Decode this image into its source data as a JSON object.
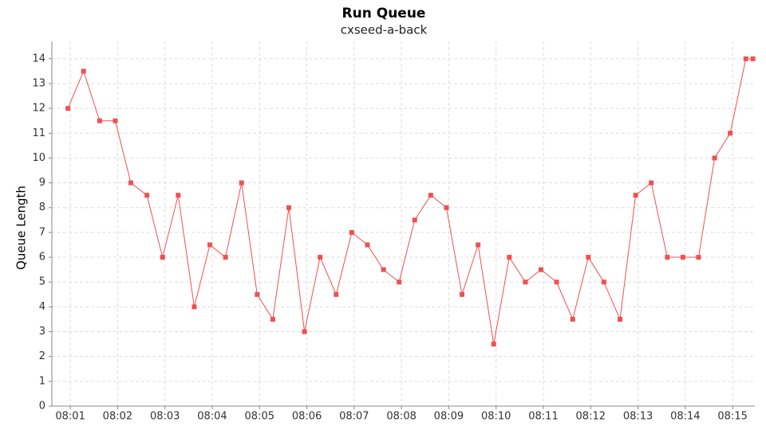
{
  "chart_data": {
    "type": "line",
    "title": "Run Queue",
    "subtitle": "cxseed-a-back",
    "y_label": "Queue Length",
    "x": [
      0.95,
      1.28,
      1.62,
      1.95,
      2.28,
      2.62,
      2.95,
      3.28,
      3.62,
      3.95,
      4.28,
      4.62,
      4.95,
      5.28,
      5.62,
      5.95,
      6.28,
      6.62,
      6.95,
      7.28,
      7.62,
      7.95,
      8.28,
      8.62,
      8.95,
      9.28,
      9.62,
      9.95,
      10.28,
      10.62,
      10.95,
      11.28,
      11.62,
      11.95,
      12.28,
      12.62,
      12.95,
      13.28,
      13.62,
      13.95,
      14.28,
      14.62,
      14.95,
      15.28,
      15.43
    ],
    "series": [
      {
        "name": "Run Queue",
        "color": "#f05050",
        "values": [
          12,
          13.5,
          11.5,
          11.5,
          9,
          8.5,
          6,
          8.5,
          4,
          6.5,
          6,
          9,
          4.5,
          3.5,
          8,
          3,
          6,
          4.5,
          7,
          6.5,
          5.5,
          5,
          7.5,
          8.5,
          8,
          4.5,
          6.5,
          2.5,
          6,
          5,
          5.5,
          5,
          3.5,
          6,
          5,
          3.5,
          8.5,
          9,
          6,
          6,
          6,
          10,
          11,
          14,
          14
        ]
      }
    ],
    "xlim": [
      0.61,
      15.47
    ],
    "xticks": [
      {
        "value": 1,
        "label": "08:01"
      },
      {
        "value": 2,
        "label": "08:02"
      },
      {
        "value": 3,
        "label": "08:03"
      },
      {
        "value": 4,
        "label": "08:04"
      },
      {
        "value": 5,
        "label": "08:05"
      },
      {
        "value": 6,
        "label": "08:06"
      },
      {
        "value": 7,
        "label": "08:07"
      },
      {
        "value": 8,
        "label": "08:08"
      },
      {
        "value": 9,
        "label": "08:09"
      },
      {
        "value": 10,
        "label": "08:10"
      },
      {
        "value": 11,
        "label": "08:11"
      },
      {
        "value": 12,
        "label": "08:12"
      },
      {
        "value": 13,
        "label": "08:13"
      },
      {
        "value": 14,
        "label": "08:14"
      },
      {
        "value": 15,
        "label": "08:15"
      }
    ],
    "ylim": [
      0,
      14.7
    ],
    "yticks": [
      0,
      1,
      2,
      3,
      4,
      5,
      6,
      7,
      8,
      9,
      10,
      11,
      12,
      13,
      14
    ],
    "grid": true
  }
}
